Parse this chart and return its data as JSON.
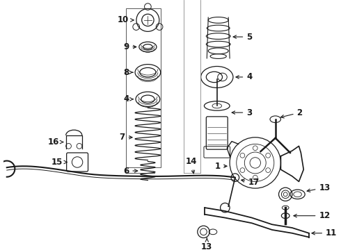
{
  "bg_color": "#ffffff",
  "line_color": "#1a1a1a",
  "figsize": [
    4.9,
    3.6
  ],
  "dpi": 100,
  "label_fontsize": 8.5,
  "lw": 0.9
}
